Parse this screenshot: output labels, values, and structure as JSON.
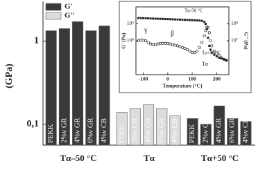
{
  "chart_data": [
    {
      "type": "bar",
      "ylabel": "(GPa)",
      "log_y": true,
      "legend": "top-left",
      "categories": [
        "PEKK",
        "2%v GR",
        "4%v GR",
        "6%v GR",
        "4%v CB",
        "PEKK",
        "2%v GR",
        "4%v GR",
        "6%v GR",
        "4%v CB",
        "PEKK",
        "2%v GR",
        "4%v GR",
        "6%v GR",
        "4%v CB"
      ],
      "groups": [
        "Tα–50 °C",
        "Tα",
        "Tα+50 °C"
      ],
      "series": [
        {
          "name": "G'",
          "color": "#3a3a3a",
          "values": [
            1.33,
            1.41,
            1.71,
            1.33,
            1.52,
            null,
            null,
            null,
            null,
            null,
            0.117,
            0.1,
            0.166,
            0.117,
            0.108
          ]
        },
        {
          "name": "G''",
          "color": "#dcdcdc",
          "values": [
            null,
            null,
            null,
            null,
            null,
            0.139,
            0.155,
            0.171,
            0.155,
            0.126,
            null,
            null,
            null,
            null,
            null
          ]
        }
      ],
      "ylim": [
        0.056,
        3
      ],
      "yticks": [
        1,
        {
          "value": 0.1,
          "label": "0,1"
        }
      ]
    },
    {
      "type": "scatter",
      "xlabel": "Temperature (°C)",
      "ylabel": "G' (Pa)",
      "y2label": "G'' (Pa)",
      "log_y": true,
      "x": [
        -120,
        -110,
        -100,
        -90,
        -80,
        -70,
        -60,
        -50,
        -40,
        -30,
        -20,
        -10,
        0,
        10,
        20,
        30,
        40,
        50,
        60,
        70,
        80,
        90,
        100,
        110,
        120,
        130,
        140,
        150,
        155,
        160,
        165,
        170,
        175,
        180,
        190,
        200,
        210,
        220,
        230,
        240
      ],
      "series": [
        {
          "color": "#222",
          "marker": "square",
          "values": [
            2200000000.0,
            2180000000.0,
            2150000000.0,
            2120000000.0,
            2100000000.0,
            2070000000.0,
            2050000000.0,
            2020000000.0,
            2000000000.0,
            1980000000.0,
            1950000000.0,
            1930000000.0,
            1900000000.0,
            1880000000.0,
            1850000000.0,
            1820000000.0,
            1800000000.0,
            1780000000.0,
            1750000000.0,
            1720000000.0,
            1700000000.0,
            1680000000.0,
            1650000000.0,
            1620000000.0,
            1600000000.0,
            1570000000.0,
            1500000000.0,
            1300000000.0,
            1000000000.0,
            500000000.0,
            150000000.0,
            50000000.0,
            30000000.0,
            20000000.0,
            15000000.0,
            12000000.0,
            10000000.0,
            9000000.0,
            8000000.0,
            7000000.0
          ]
        },
        {
          "color": "#222",
          "marker": "circle",
          "axis": "y2",
          "values": [
            10000000.0,
            11000000.0,
            11000000.0,
            10000000.0,
            8000000.0,
            6500000.0,
            6000000.0,
            6000000.0,
            6500000.0,
            7000000.0,
            7000000.0,
            7000000.0,
            6800000.0,
            6500000.0,
            6000000.0,
            5500000.0,
            5000000.0,
            4500000.0,
            4000000.0,
            3500000.0,
            3000000.0,
            2500000.0,
            2000000.0,
            2000000.0,
            2500000.0,
            4000000.0,
            8000000.0,
            20000000.0,
            40000000.0,
            65000000.0,
            60000000.0,
            30000000.0,
            10000000.0,
            5000000.0,
            2500000.0,
            1800000.0,
            1300000.0,
            1000000.0,
            800000.0,
            700000.0
          ]
        }
      ],
      "xlim": [
        -130,
        250
      ],
      "xticks": [
        -100,
        0,
        100,
        200
      ],
      "ylim": [
        1000000.0,
        10000000000.0
      ],
      "yticks": [
        {
          "value": 100000000.0,
          "label": "10⁸"
        },
        {
          "value": 1000000000.0,
          "label": "10⁹"
        }
      ],
      "y2lim": [
        100000.0,
        1000000000.0
      ],
      "y2ticks": [
        {
          "value": 10000000.0,
          "label": "10⁷"
        },
        {
          "value": 100000000.0,
          "label": "10⁸"
        }
      ],
      "annotations": [
        "γ",
        "β",
        "Tα",
        "Tα-50 °C",
        "Tα+50 °C"
      ]
    }
  ]
}
